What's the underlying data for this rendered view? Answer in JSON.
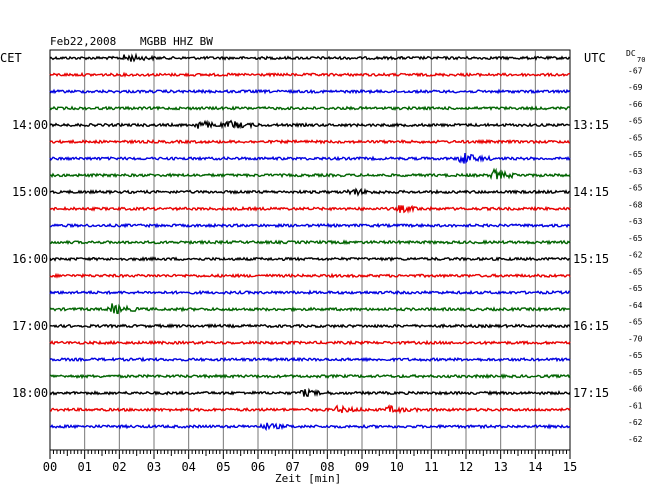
{
  "header": {
    "date": "Feb22,2008",
    "station": "MGBB HHZ BW",
    "left_zone": "CET",
    "right_zone": "UTC",
    "dc_label": "DC",
    "dc_sub": "70"
  },
  "chart_data": {
    "type": "line",
    "title": "Feb22,2008  MGBB HHZ BW",
    "xlabel": "Zeit [min]",
    "xlim": [
      0,
      15
    ],
    "x_ticks": [
      "00",
      "01",
      "02",
      "03",
      "04",
      "05",
      "06",
      "07",
      "08",
      "09",
      "10",
      "11",
      "12",
      "13",
      "14",
      "15"
    ],
    "grid": true,
    "colors": [
      "#000000",
      "#e80000",
      "#0000e0",
      "#006400"
    ],
    "trace_color_cycle": [
      "black",
      "red",
      "blue",
      "green"
    ],
    "left_time_labels": [
      {
        "trace": 4,
        "label": "14:00"
      },
      {
        "trace": 8,
        "label": "15:00"
      },
      {
        "trace": 12,
        "label": "16:00"
      },
      {
        "trace": 16,
        "label": "17:00"
      },
      {
        "trace": 20,
        "label": "18:00"
      }
    ],
    "right_time_labels": [
      {
        "trace": 4,
        "label": "13:15"
      },
      {
        "trace": 8,
        "label": "14:15"
      },
      {
        "trace": 12,
        "label": "15:15"
      },
      {
        "trace": 16,
        "label": "16:15"
      },
      {
        "trace": 20,
        "label": "17:15"
      }
    ],
    "dc_values": [
      "-67",
      "-69",
      "-66",
      "-65",
      "-65",
      "-65",
      "-63",
      "-65",
      "-68",
      "-63",
      "-65",
      "-62",
      "-65",
      "-65",
      "-64",
      "-65",
      "-70",
      "-65",
      "-65",
      "-66",
      "-61",
      "-62",
      "-62"
    ],
    "events": [
      {
        "trace": 0,
        "minute": 2.2,
        "amplitude": 4
      },
      {
        "trace": 4,
        "minute": 4.3,
        "amplitude": 4
      },
      {
        "trace": 4,
        "minute": 5.2,
        "amplitude": 4
      },
      {
        "trace": 6,
        "minute": 11.9,
        "amplitude": 6
      },
      {
        "trace": 7,
        "minute": 12.8,
        "amplitude": 5
      },
      {
        "trace": 8,
        "minute": 8.7,
        "amplitude": 3
      },
      {
        "trace": 9,
        "minute": 10.1,
        "amplitude": 3
      },
      {
        "trace": 15,
        "minute": 1.8,
        "amplitude": 5
      },
      {
        "trace": 20,
        "minute": 7.3,
        "amplitude": 3
      },
      {
        "trace": 21,
        "minute": 8.3,
        "amplitude": 3
      },
      {
        "trace": 21,
        "minute": 9.8,
        "amplitude": 3
      },
      {
        "trace": 22,
        "minute": 6.2,
        "amplitude": 3
      }
    ]
  }
}
